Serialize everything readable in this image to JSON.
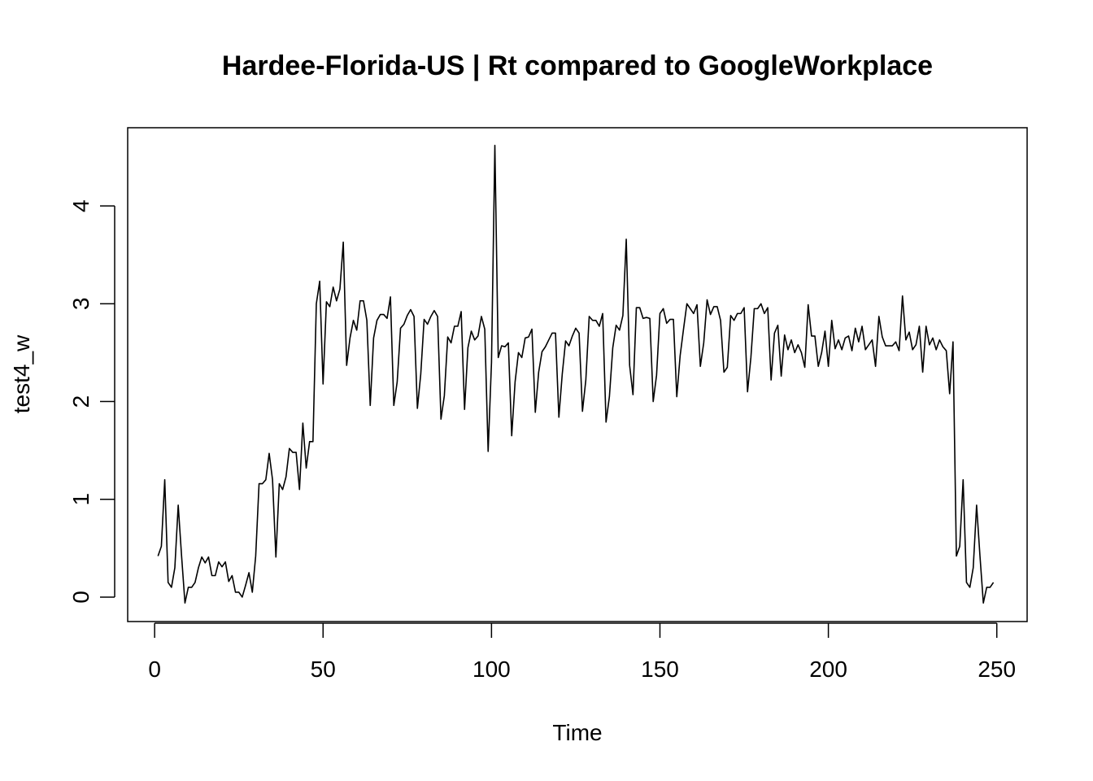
{
  "chart_data": {
    "type": "line",
    "title": "Hardee-Florida-US | Rt compared to GoogleWorkplace",
    "xlabel": "Time",
    "ylabel": "test4_w",
    "xlim": [
      -8,
      259
    ],
    "ylim": [
      -0.25,
      4.8
    ],
    "x_ticks": [
      0,
      50,
      100,
      150,
      200,
      250
    ],
    "y_ticks": [
      0,
      1,
      2,
      3,
      4
    ],
    "grid": false,
    "legend": "none",
    "line_color": "#000000",
    "series": [
      {
        "values": [
          0.42,
          0.52,
          1.2,
          0.15,
          0.1,
          0.3,
          0.94,
          0.42,
          -0.06,
          0.1,
          0.1,
          0.15,
          0.3,
          0.41,
          0.35,
          0.41,
          0.22,
          0.22,
          0.36,
          0.31,
          0.36,
          0.16,
          0.22,
          0.05,
          0.05,
          0.0,
          0.12,
          0.25,
          0.05,
          0.42,
          1.16,
          1.16,
          1.2,
          1.47,
          1.2,
          0.41,
          1.16,
          1.1,
          1.23,
          1.52,
          1.48,
          1.48,
          1.1,
          1.78,
          1.32,
          1.59,
          1.59,
          3.0,
          3.23,
          2.18,
          3.02,
          2.97,
          3.17,
          3.03,
          3.15,
          3.63,
          2.37,
          2.65,
          2.83,
          2.73,
          3.03,
          3.03,
          2.83,
          1.96,
          2.65,
          2.83,
          2.89,
          2.89,
          2.85,
          3.07,
          1.96,
          2.2,
          2.75,
          2.79,
          2.88,
          2.94,
          2.87,
          1.93,
          2.28,
          2.84,
          2.79,
          2.87,
          2.93,
          2.87,
          1.82,
          2.06,
          2.66,
          2.6,
          2.77,
          2.77,
          2.92,
          1.92,
          2.55,
          2.72,
          2.63,
          2.67,
          2.87,
          2.74,
          1.49,
          2.4,
          4.62,
          2.45,
          2.57,
          2.56,
          2.6,
          1.65,
          2.2,
          2.5,
          2.45,
          2.65,
          2.66,
          2.74,
          1.89,
          2.3,
          2.51,
          2.56,
          2.63,
          2.7,
          2.7,
          1.84,
          2.28,
          2.62,
          2.57,
          2.67,
          2.75,
          2.7,
          1.9,
          2.22,
          2.87,
          2.83,
          2.83,
          2.77,
          2.9,
          1.79,
          2.05,
          2.55,
          2.78,
          2.73,
          2.88,
          3.66,
          2.37,
          2.07,
          2.96,
          2.96,
          2.85,
          2.86,
          2.85,
          2.0,
          2.27,
          2.9,
          2.95,
          2.8,
          2.84,
          2.84,
          2.05,
          2.47,
          2.74,
          3.0,
          2.95,
          2.9,
          2.99,
          2.36,
          2.6,
          3.04,
          2.89,
          2.97,
          2.97,
          2.83,
          2.3,
          2.35,
          2.88,
          2.83,
          2.9,
          2.9,
          2.96,
          2.1,
          2.45,
          2.95,
          2.95,
          3.0,
          2.9,
          2.96,
          2.22,
          2.7,
          2.78,
          2.26,
          2.68,
          2.53,
          2.63,
          2.5,
          2.58,
          2.5,
          2.35,
          2.99,
          2.67,
          2.67,
          2.36,
          2.5,
          2.72,
          2.36,
          2.83,
          2.54,
          2.63,
          2.53,
          2.65,
          2.67,
          2.52,
          2.75,
          2.61,
          2.77,
          2.53,
          2.58,
          2.63,
          2.36,
          2.87,
          2.66,
          2.57,
          2.57,
          2.57,
          2.61,
          2.52,
          3.08,
          2.63,
          2.71,
          2.53,
          2.58,
          2.77,
          2.3,
          2.77,
          2.58,
          2.65,
          2.53,
          2.63,
          2.56,
          2.52,
          2.08,
          2.61,
          0.42,
          0.52,
          1.2,
          0.15,
          0.1,
          0.3,
          0.94,
          0.42,
          -0.06,
          0.1,
          0.1,
          0.15
        ]
      }
    ]
  }
}
